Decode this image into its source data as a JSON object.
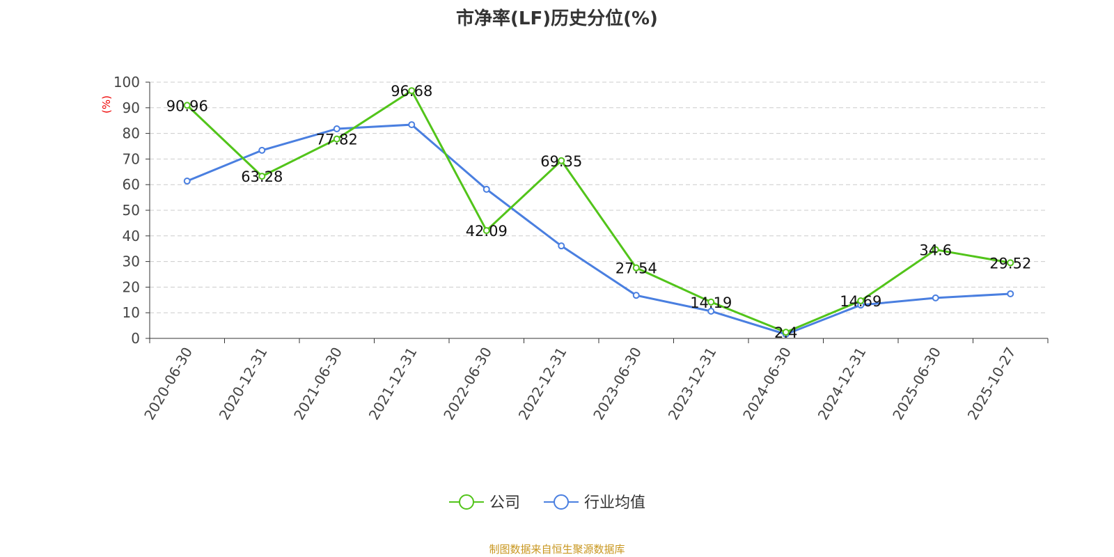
{
  "chart_data": {
    "type": "line",
    "title": "市净率(LF)历史分位(%)",
    "ylabel": "(%)",
    "xlabel": "",
    "ylim": [
      0,
      100
    ],
    "yticks": [
      0,
      10,
      20,
      30,
      40,
      50,
      60,
      70,
      80,
      90,
      100
    ],
    "grid": true,
    "legend_position": "bottom-center",
    "categories": [
      "2020-06-30",
      "2020-12-31",
      "2021-06-30",
      "2021-12-31",
      "2022-06-30",
      "2022-12-31",
      "2023-06-30",
      "2023-12-31",
      "2024-06-30",
      "2024-12-31",
      "2025-06-30",
      "2025-10-27"
    ],
    "series": [
      {
        "name": "公司",
        "color": "#52c41a",
        "show_labels": true,
        "values": [
          90.96,
          63.28,
          77.82,
          96.68,
          42.09,
          69.35,
          27.54,
          14.19,
          2.4,
          14.69,
          34.6,
          29.52
        ]
      },
      {
        "name": "行业均值",
        "color": "#4a7fe0",
        "show_labels": false,
        "values": [
          61.4,
          73.4,
          81.8,
          83.4,
          58.2,
          36.1,
          16.8,
          10.6,
          1.6,
          13.0,
          15.8,
          17.4
        ]
      }
    ]
  },
  "source": "制图数据来自恒生聚源数据库"
}
